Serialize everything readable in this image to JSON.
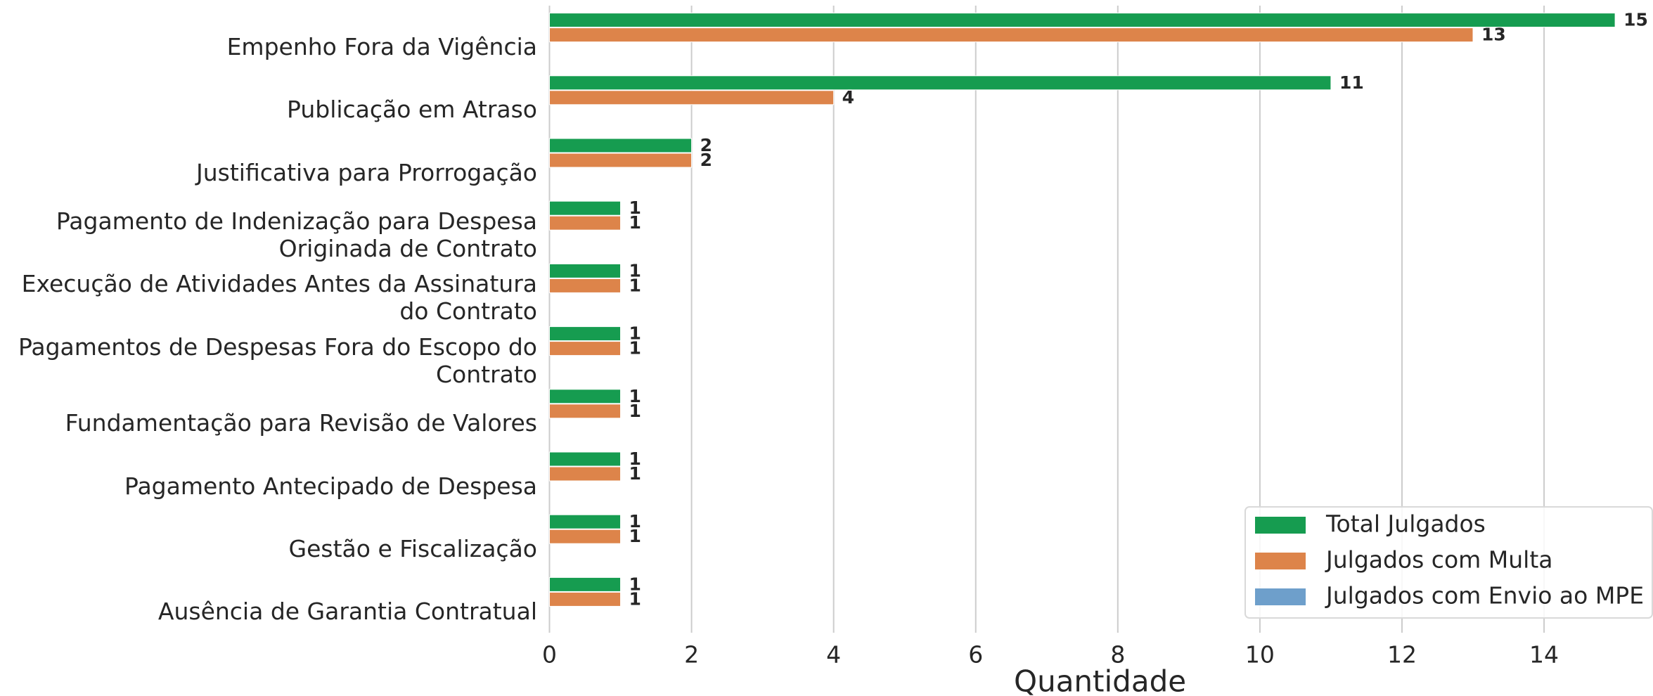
{
  "chart_data": {
    "type": "bar",
    "orientation": "horizontal",
    "x_label": "Quantidade",
    "categories": [
      "Empenho Fora da Vigência",
      "Publicação em Atraso",
      "Justificativa para Prorrogação",
      "Pagamento de Indenização para Despesa Originada de Contrato",
      "Execução de Atividades Antes da Assinatura do Contrato",
      "Pagamentos de Despesas Fora do Escopo do Contrato",
      "Fundamentação para Revisão de Valores",
      "Pagamento Antecipado de Despesa",
      "Gestão e Fiscalização",
      "Ausência de Garantia Contratual"
    ],
    "series": [
      {
        "name": "Total Julgados",
        "color": "#169c50",
        "values": [
          15,
          11,
          2,
          1,
          1,
          1,
          1,
          1,
          1,
          1
        ]
      },
      {
        "name": "Julgados com Multa",
        "color": "#dd844a",
        "values": [
          13,
          4,
          2,
          1,
          1,
          1,
          1,
          1,
          1,
          1
        ]
      },
      {
        "name": "Julgados com Envio ao MPE",
        "color": "#6e9fcb",
        "values": [
          0,
          0,
          0,
          0,
          0,
          0,
          0,
          0,
          0,
          0
        ]
      }
    ],
    "xlim": [
      0,
      15.5
    ],
    "xticks": [
      0,
      2,
      4,
      6,
      8,
      10,
      12,
      14
    ],
    "grid": true,
    "legend": "lower right"
  }
}
